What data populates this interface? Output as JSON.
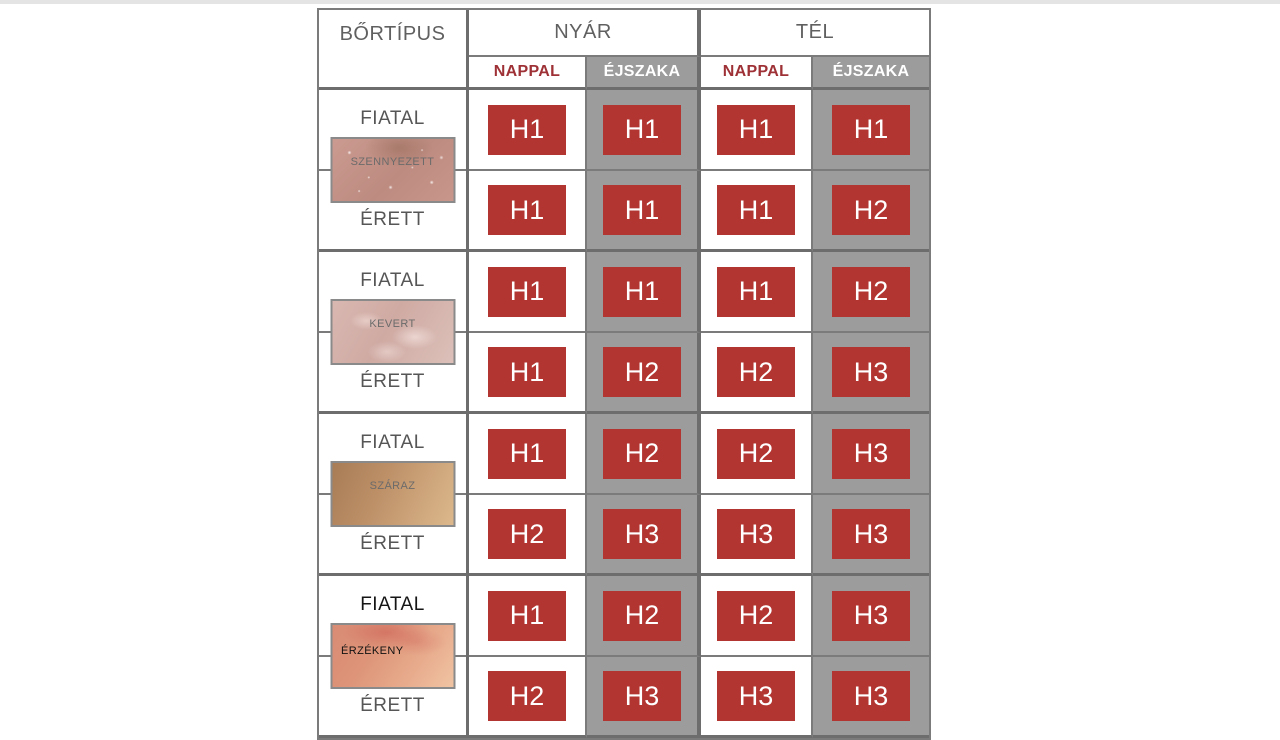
{
  "header": {
    "skin_type": "BŐRTÍPUS",
    "summer": "NYÁR",
    "winter": "TÉL",
    "day": "NAPPAL",
    "night": "ÉJSZAKA"
  },
  "groups": [
    {
      "type_label": "SZENNYEZETT",
      "young_label": "FIATAL",
      "mature_label": "ÉRETT",
      "young_values": [
        "H1",
        "H1",
        "H1",
        "H1"
      ],
      "mature_values": [
        "H1",
        "H1",
        "H1",
        "H2"
      ]
    },
    {
      "type_label": "KEVERT",
      "young_label": "FIATAL",
      "mature_label": "ÉRETT",
      "young_values": [
        "H1",
        "H1",
        "H1",
        "H2"
      ],
      "mature_values": [
        "H1",
        "H2",
        "H2",
        "H3"
      ]
    },
    {
      "type_label": "SZÁRAZ",
      "young_label": "FIATAL",
      "mature_label": "ÉRETT",
      "young_values": [
        "H1",
        "H2",
        "H2",
        "H3"
      ],
      "mature_values": [
        "H2",
        "H3",
        "H3",
        "H3"
      ]
    },
    {
      "type_label": "ÉRZÉKENY",
      "young_label": "FIATAL",
      "mature_label": "ÉRETT",
      "young_values": [
        "H1",
        "H2",
        "H2",
        "H3"
      ],
      "mature_values": [
        "H2",
        "H3",
        "H3",
        "H3"
      ]
    }
  ],
  "colors": {
    "badge_red": "#b23531",
    "day_text_red": "#9e3136",
    "night_gray": "#9c9c9c",
    "header_text_gray": "#606060",
    "border_gray": "#7b7b7b"
  }
}
